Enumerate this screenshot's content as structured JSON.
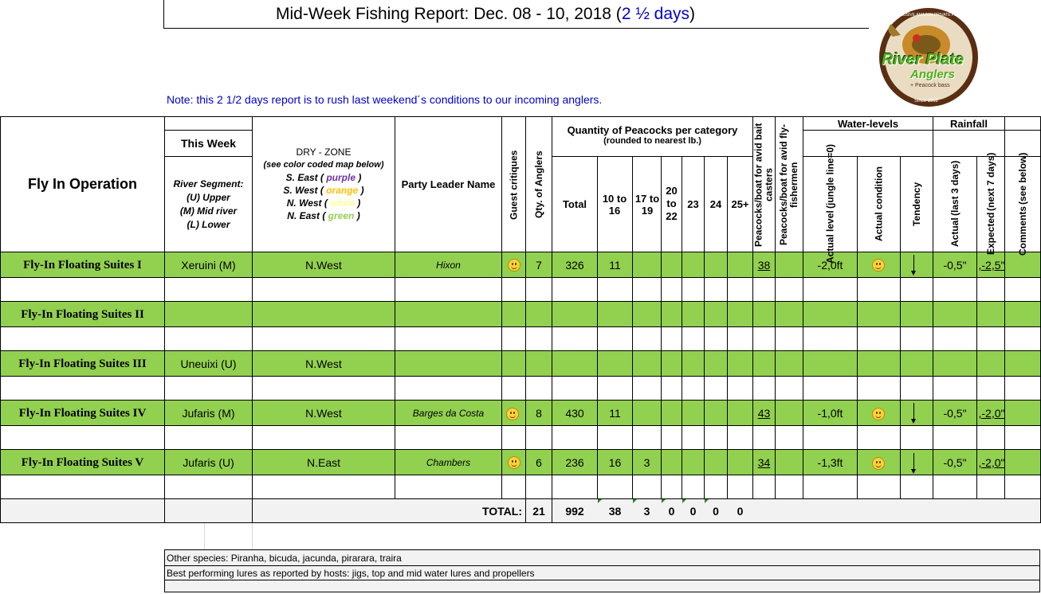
{
  "title": {
    "main": "Mid-Week Fishing Report: Dec. 08 - 10, 2018 (",
    "days": "2 ½ days",
    "close": ")"
  },
  "note": "Note:  this 2 1/2 days report is to rush last weekend´s conditions to our incoming anglers.",
  "logo": {
    "top_text": "EXCLUSIVE AMAZON PRIVATE FISHERIES",
    "brand1": "River Plate",
    "brand2": "Anglers",
    "sub": "+ Peacock bass",
    "since": "Since 1992"
  },
  "headers": {
    "operation": "Fly In Operation",
    "this_week": "This Week",
    "segment": [
      "River Segment:",
      "(U) Upper",
      "(M) Mid river",
      "(L) Lower"
    ],
    "dry_zone": "DRY - ZONE",
    "dry_map": "(see color coded map below)",
    "zones": [
      {
        "label": "S. East (",
        "color_name": "purple",
        "close": ")",
        "color": "#7030a0"
      },
      {
        "label": "S. West (",
        "color_name": "orange",
        "close": ")",
        "color": "#ffc000"
      },
      {
        "label": "N. West (",
        "color_name": "white",
        "close": ")",
        "color": "#ffff99"
      },
      {
        "label": "N. East (",
        "color_name": "green",
        "close": ")",
        "color": "#92d050"
      }
    ],
    "party_leader": "Party Leader Name",
    "guest_critiques": "Guest critiques",
    "qty_anglers": "Qty. of Anglers",
    "quantity": "Quantity of Peacocks per category",
    "rounded": "(rounded to nearest lb.)",
    "total": "Total",
    "c10": "10 to 16",
    "c17": "17 to 19",
    "c20": [
      "20",
      "to",
      "22"
    ],
    "c23": "23",
    "c24": "24",
    "c25": "25+",
    "bait": "Peacocks/boat for avid bait casters",
    "fly": "Peacocks/boat for avid fly-fishermen",
    "water_levels": "Water-levels",
    "rainfall": "Rainfall",
    "actual_level": "Actual level",
    "jungle": "(jungle line=0)",
    "actual_condition": "Actual condition",
    "tendency": "Tendency",
    "actual_rain": "Actual",
    "last3": "(last 3 days)",
    "expected": "Expected",
    "next7": "(next 7 days)",
    "comments": "Comments",
    "see_below": "(see below)"
  },
  "rows": [
    {
      "name": "Fly-In Floating Suites I",
      "segment": "Xeruini (M)",
      "zone": "N.West",
      "leader": "Hixon",
      "critique": "smile",
      "qty": "7",
      "total": "326",
      "c10": "11",
      "c17": "",
      "bait": "38",
      "level": "-2,0ft",
      "condition": "smile",
      "tendency": "down",
      "rain": "-0,5\"",
      "expected": ",-2,5\""
    },
    {
      "name": "Fly-In Floating Suites II",
      "segment": "",
      "zone": "",
      "leader": "",
      "critique": "",
      "qty": "",
      "total": "",
      "c10": "",
      "c17": "",
      "bait": "",
      "level": "",
      "condition": "",
      "tendency": "",
      "rain": "",
      "expected": ""
    },
    {
      "name": "Fly-In Floating Suites III",
      "segment": "Uneuixi (U)",
      "zone": "N.West",
      "leader": "",
      "critique": "",
      "qty": "",
      "total": "",
      "c10": "",
      "c17": "",
      "bait": "",
      "level": "",
      "condition": "",
      "tendency": "",
      "rain": "",
      "expected": ""
    },
    {
      "name": "Fly-In Floating Suites IV",
      "segment": "Jufaris (M)",
      "zone": "N.West",
      "leader": "Barges da Costa",
      "critique": "smile",
      "qty": "8",
      "total": "430",
      "c10": "11",
      "c17": "",
      "bait": "43",
      "level": "-1,0ft",
      "condition": "smile",
      "tendency": "down",
      "rain": "-0,5\"",
      "expected": ",-2,0\""
    },
    {
      "name": "Fly-In Floating Suites V",
      "segment": "Jufaris (U)",
      "zone": "N.East",
      "leader": "Chambers",
      "critique": "smile",
      "qty": "6",
      "total": "236",
      "c10": "16",
      "c17": "3",
      "bait": "34",
      "level": "-1,3ft",
      "condition": "smile",
      "tendency": "down",
      "rain": "-0,5\"",
      "expected": ",-2,0\""
    }
  ],
  "totals": {
    "label": "TOTAL:",
    "qty": "21",
    "total": "992",
    "c10": "38",
    "c17": "3",
    "c20": "0",
    "c23": "0",
    "c24": "0",
    "c25": "0"
  },
  "footer": {
    "species": "Other species: Piranha, bicuda, jacunda, pirarara, traira",
    "lures": "Best performing lures as reported by hosts: jigs, top and mid water lures and propellers"
  },
  "colors": {
    "row_green": "#92d050",
    "title_blue": "#0000cc"
  }
}
